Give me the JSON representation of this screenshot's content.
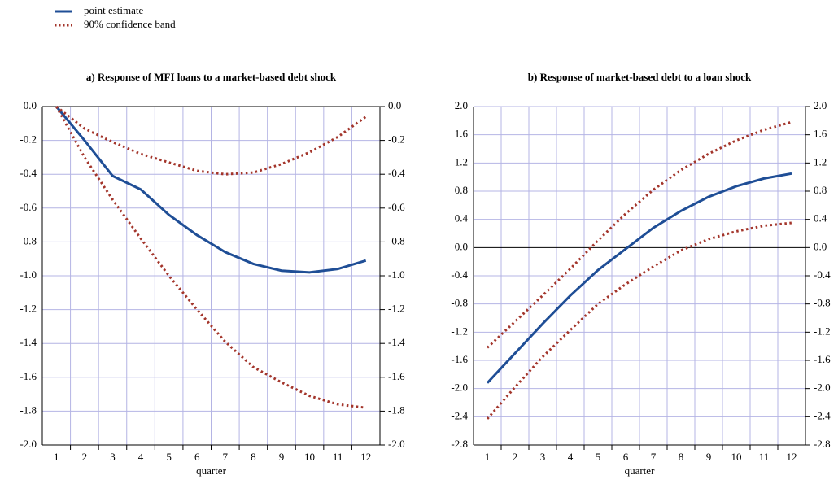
{
  "chart_data": [
    {
      "type": "line",
      "title": "a) Response of MFI loans to a market-based debt shock",
      "x_label": "quarter",
      "categories": [
        "1",
        "2",
        "3",
        "4",
        "5",
        "6",
        "7",
        "8",
        "9",
        "10",
        "11",
        "12"
      ],
      "series": [
        {
          "name": "point estimate",
          "color": "#1f4e96",
          "style": "solid",
          "values": [
            0.0,
            -0.2,
            -0.41,
            -0.49,
            -0.64,
            -0.76,
            -0.86,
            -0.93,
            -0.97,
            -0.98,
            -0.96,
            -0.91
          ]
        },
        {
          "name": "90% confidence band",
          "color": "#a3352b",
          "style": "dotted",
          "upper": [
            0.0,
            -0.13,
            -0.21,
            -0.28,
            -0.33,
            -0.38,
            -0.4,
            -0.39,
            -0.34,
            -0.27,
            -0.18,
            -0.06
          ],
          "lower": [
            0.0,
            -0.3,
            -0.55,
            -0.78,
            -1.0,
            -1.2,
            -1.39,
            -1.54,
            -1.63,
            -1.71,
            -1.76,
            -1.78
          ]
        }
      ],
      "ylim": [
        -2.0,
        0.0
      ],
      "yticks": [
        {
          "value": -2.0,
          "label": "-2.0"
        },
        {
          "value": -1.8,
          "label": "-1.8"
        },
        {
          "value": -1.6,
          "label": "-1.6"
        },
        {
          "value": -1.4,
          "label": "-1.4"
        },
        {
          "value": -1.2,
          "label": "-1.2"
        },
        {
          "value": -1.0,
          "label": "-1.0"
        },
        {
          "value": -0.8,
          "label": "-0.8"
        },
        {
          "value": -0.6,
          "label": "-0.6"
        },
        {
          "value": -0.4,
          "label": "-0.4"
        },
        {
          "value": -0.2,
          "label": "-0.2"
        },
        {
          "value": 0,
          "label": "0.0"
        }
      ],
      "grid": true
    },
    {
      "type": "line",
      "title": "b) Response of market-based debt to a loan shock",
      "x_label": "quarter",
      "categories": [
        "1",
        "2",
        "3",
        "4",
        "5",
        "6",
        "7",
        "8",
        "9",
        "10",
        "11",
        "12"
      ],
      "series": [
        {
          "name": "point estimate",
          "color": "#1f4e96",
          "style": "solid",
          "values": [
            -1.92,
            -1.5,
            -1.08,
            -0.68,
            -0.32,
            -0.02,
            0.28,
            0.52,
            0.72,
            0.87,
            0.98,
            1.05
          ]
        },
        {
          "name": "90% confidence band",
          "color": "#a3352b",
          "style": "dotted",
          "upper": [
            -1.42,
            -1.05,
            -0.68,
            -0.3,
            0.1,
            0.48,
            0.82,
            1.1,
            1.33,
            1.52,
            1.67,
            1.78
          ],
          "lower": [
            -2.43,
            -1.98,
            -1.55,
            -1.17,
            -0.8,
            -0.52,
            -0.27,
            -0.04,
            0.12,
            0.23,
            0.31,
            0.35
          ]
        }
      ],
      "ylim": [
        -2.8,
        2.0
      ],
      "yticks": [
        {
          "value": -2.8,
          "label": "-2.8"
        },
        {
          "value": -2.4,
          "label": "-2.4"
        },
        {
          "value": -2.0,
          "label": "-2.0"
        },
        {
          "value": -1.6,
          "label": "-1.6"
        },
        {
          "value": -1.2,
          "label": "-1.2"
        },
        {
          "value": -0.8,
          "label": "-0.8"
        },
        {
          "value": -0.4,
          "label": "-0.4"
        },
        {
          "value": 0,
          "label": "0.0"
        },
        {
          "value": 0.4,
          "label": "0.4"
        },
        {
          "value": 0.8,
          "label": "0.8"
        },
        {
          "value": 1.2,
          "label": "1.2"
        },
        {
          "value": 1.6,
          "label": "1.6"
        },
        {
          "value": 2.0,
          "label": "2.0"
        }
      ],
      "grid": true
    }
  ]
}
